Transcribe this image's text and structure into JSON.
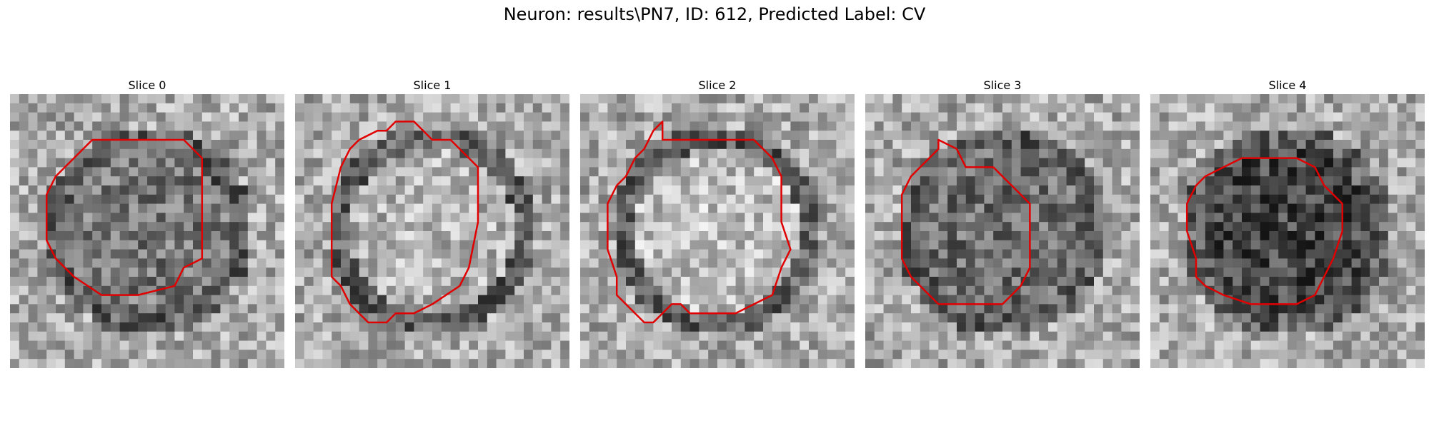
{
  "figure": {
    "title": "Neuron: results\\PN7, ID: 612, Predicted Label: CV",
    "contour_color": "#e00000",
    "panels": [
      {
        "title": "Slice 0",
        "contour": [
          [
            15,
            5
          ],
          [
            19,
            5
          ],
          [
            21,
            7
          ],
          [
            21,
            18
          ],
          [
            19,
            19
          ],
          [
            18,
            21
          ],
          [
            14,
            22
          ],
          [
            10,
            22
          ],
          [
            7,
            20
          ],
          [
            6,
            19
          ],
          [
            5,
            18
          ],
          [
            4,
            16
          ],
          [
            4,
            11
          ],
          [
            5,
            9
          ],
          [
            6,
            8
          ],
          [
            7,
            7
          ],
          [
            8,
            6
          ],
          [
            9,
            5
          ]
        ],
        "center_shade": 120
      },
      {
        "title": "Slice 1",
        "contour": [
          [
            11,
            3
          ],
          [
            13,
            3
          ],
          [
            15,
            5
          ],
          [
            17,
            5
          ],
          [
            19,
            7
          ],
          [
            20,
            8
          ],
          [
            20,
            14
          ],
          [
            19,
            19
          ],
          [
            18,
            21
          ],
          [
            15,
            23
          ],
          [
            13,
            24
          ],
          [
            11,
            24
          ],
          [
            10,
            25
          ],
          [
            8,
            25
          ],
          [
            7,
            24
          ],
          [
            6,
            23
          ],
          [
            5,
            21
          ],
          [
            4,
            20
          ],
          [
            4,
            17
          ],
          [
            4,
            12
          ],
          [
            5,
            8
          ],
          [
            6,
            6
          ],
          [
            7,
            5
          ],
          [
            9,
            4
          ],
          [
            10,
            4
          ]
        ],
        "center_shade": 180
      },
      {
        "title": "Slice 2",
        "contour": [
          [
            8,
            4
          ],
          [
            9,
            3
          ],
          [
            9,
            5
          ],
          [
            19,
            5
          ],
          [
            21,
            7
          ],
          [
            22,
            9
          ],
          [
            22,
            14
          ],
          [
            23,
            17
          ],
          [
            22,
            19
          ],
          [
            21,
            22
          ],
          [
            19,
            23
          ],
          [
            17,
            24
          ],
          [
            14,
            24
          ],
          [
            12,
            24
          ],
          [
            11,
            23
          ],
          [
            10,
            23
          ],
          [
            9,
            24
          ],
          [
            8,
            25
          ],
          [
            7,
            25
          ],
          [
            6,
            24
          ],
          [
            5,
            23
          ],
          [
            4,
            22
          ],
          [
            4,
            20
          ],
          [
            3,
            17
          ],
          [
            3,
            12
          ],
          [
            4,
            10
          ],
          [
            5,
            9
          ],
          [
            6,
            7
          ],
          [
            7,
            6
          ]
        ],
        "center_shade": 190
      },
      {
        "title": "Slice 3",
        "contour": [
          [
            8,
            5
          ],
          [
            10,
            6
          ],
          [
            11,
            8
          ],
          [
            14,
            8
          ],
          [
            17,
            11
          ],
          [
            18,
            12
          ],
          [
            18,
            19
          ],
          [
            17,
            21
          ],
          [
            16,
            22
          ],
          [
            15,
            23
          ],
          [
            8,
            23
          ],
          [
            7,
            22
          ],
          [
            5,
            20
          ],
          [
            4,
            18
          ],
          [
            4,
            15
          ],
          [
            4,
            11
          ],
          [
            5,
            9
          ],
          [
            6,
            8
          ],
          [
            7,
            7
          ],
          [
            8,
            6
          ]
        ],
        "center_shade": 110
      },
      {
        "title": "Slice 4",
        "contour": [
          [
            10,
            7
          ],
          [
            16,
            7
          ],
          [
            18,
            8
          ],
          [
            19,
            10
          ],
          [
            20,
            11
          ],
          [
            21,
            12
          ],
          [
            21,
            15
          ],
          [
            20,
            18
          ],
          [
            19,
            20
          ],
          [
            18,
            22
          ],
          [
            16,
            23
          ],
          [
            11,
            23
          ],
          [
            8,
            22
          ],
          [
            6,
            21
          ],
          [
            5,
            20
          ],
          [
            5,
            18
          ],
          [
            4,
            15
          ],
          [
            4,
            12
          ],
          [
            5,
            10
          ],
          [
            6,
            9
          ],
          [
            8,
            8
          ]
        ],
        "center_shade": 70
      }
    ]
  }
}
